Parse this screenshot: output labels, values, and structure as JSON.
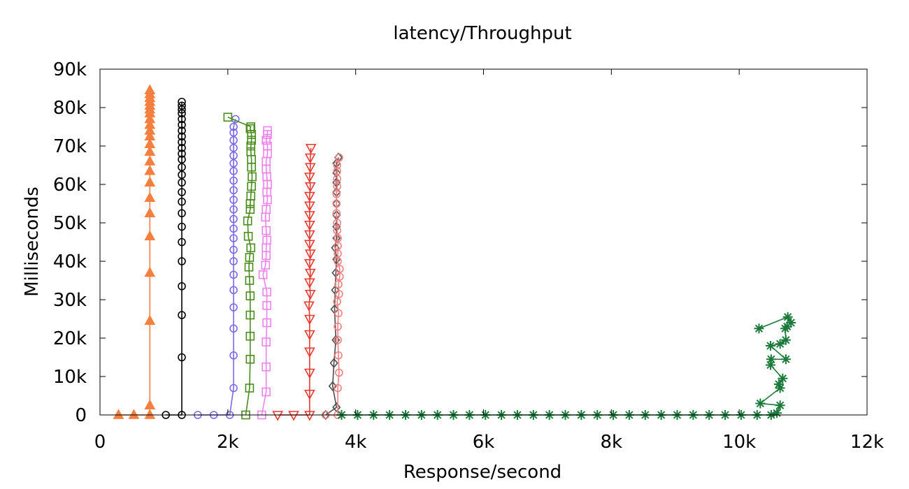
{
  "chart_data": {
    "type": "line",
    "title": "latency/Throughput",
    "xlabel": "Response/second",
    "ylabel": "Milliseconds",
    "xlim": [
      0,
      12000
    ],
    "ylim": [
      0,
      90000
    ],
    "x_ticks": [
      0,
      2000,
      4000,
      6000,
      8000,
      10000,
      12000
    ],
    "x_tick_labels": [
      "0",
      "2k",
      "4k",
      "6k",
      "8k",
      "10k",
      "12k"
    ],
    "y_ticks": [
      0,
      10000,
      20000,
      30000,
      40000,
      50000,
      60000,
      70000,
      80000,
      90000
    ],
    "y_tick_labels": [
      "0",
      "10k",
      "20k",
      "30k",
      "40k",
      "50k",
      "60k",
      "70k",
      "80k",
      "90k"
    ],
    "grid": false,
    "legend": "none",
    "series": [
      {
        "color": "#f47f3e",
        "marker": "triangle-up",
        "points": [
          [
            290,
            0
          ],
          [
            530,
            0
          ],
          [
            780,
            0
          ],
          [
            780,
            2500
          ],
          [
            780,
            24500
          ],
          [
            780,
            37000
          ],
          [
            780,
            46500
          ],
          [
            780,
            52500
          ],
          [
            780,
            56500
          ],
          [
            780,
            60500
          ],
          [
            780,
            63500
          ],
          [
            780,
            66000
          ],
          [
            780,
            68500
          ],
          [
            780,
            70500
          ],
          [
            780,
            72500
          ],
          [
            780,
            74000
          ],
          [
            780,
            75500
          ],
          [
            780,
            77000
          ],
          [
            780,
            78500
          ],
          [
            780,
            79500
          ],
          [
            780,
            80500
          ],
          [
            780,
            81500
          ],
          [
            780,
            82500
          ],
          [
            780,
            83500
          ],
          [
            780,
            84500
          ]
        ]
      },
      {
        "color": "#000000",
        "marker": "circle",
        "points": [
          [
            1030,
            0
          ],
          [
            1280,
            0
          ],
          [
            1280,
            15000
          ],
          [
            1280,
            26000
          ],
          [
            1280,
            33500
          ],
          [
            1280,
            40000
          ],
          [
            1280,
            45000
          ],
          [
            1280,
            49000
          ],
          [
            1280,
            52500
          ],
          [
            1280,
            55500
          ],
          [
            1280,
            58000
          ],
          [
            1280,
            60500
          ],
          [
            1280,
            62500
          ],
          [
            1280,
            64500
          ],
          [
            1280,
            66500
          ],
          [
            1280,
            68000
          ],
          [
            1280,
            69500
          ],
          [
            1280,
            71000
          ],
          [
            1280,
            72500
          ],
          [
            1280,
            74000
          ],
          [
            1280,
            75500
          ],
          [
            1280,
            77000
          ],
          [
            1280,
            78500
          ],
          [
            1280,
            79500
          ],
          [
            1280,
            80500
          ],
          [
            1280,
            81500
          ]
        ]
      },
      {
        "color": "#7b68ee",
        "marker": "circle",
        "points": [
          [
            1530,
            0
          ],
          [
            1780,
            0
          ],
          [
            2030,
            0
          ],
          [
            2090,
            7000
          ],
          [
            2090,
            15500
          ],
          [
            2090,
            22500
          ],
          [
            2090,
            28000
          ],
          [
            2090,
            32500
          ],
          [
            2090,
            36500
          ],
          [
            2090,
            40000
          ],
          [
            2090,
            43000
          ],
          [
            2090,
            46000
          ],
          [
            2090,
            48500
          ],
          [
            2090,
            51000
          ],
          [
            2090,
            53500
          ],
          [
            2090,
            56000
          ],
          [
            2090,
            58500
          ],
          [
            2090,
            61000
          ],
          [
            2090,
            63500
          ],
          [
            2090,
            65500
          ],
          [
            2090,
            67500
          ],
          [
            2090,
            69500
          ],
          [
            2090,
            71500
          ],
          [
            2090,
            73500
          ],
          [
            2090,
            75000
          ],
          [
            2120,
            77000
          ]
        ]
      },
      {
        "color": "#4a8c1c",
        "marker": "square",
        "points": [
          [
            2280,
            0
          ],
          [
            2340,
            7000
          ],
          [
            2350,
            14500
          ],
          [
            2350,
            20500
          ],
          [
            2350,
            26000
          ],
          [
            2350,
            31000
          ],
          [
            2340,
            35000
          ],
          [
            2330,
            38500
          ],
          [
            2340,
            41000
          ],
          [
            2360,
            43500
          ],
          [
            2320,
            46500
          ],
          [
            2310,
            50500
          ],
          [
            2350,
            53500
          ],
          [
            2350,
            55000
          ],
          [
            2360,
            57000
          ],
          [
            2370,
            59500
          ],
          [
            2380,
            62000
          ],
          [
            2370,
            64500
          ],
          [
            2370,
            66500
          ],
          [
            2360,
            68500
          ],
          [
            2360,
            70000
          ],
          [
            2370,
            71500
          ],
          [
            2370,
            73000
          ],
          [
            2350,
            74500
          ],
          [
            2360,
            75000
          ],
          [
            2000,
            77500
          ]
        ]
      },
      {
        "color": "#ee82ee",
        "marker": "square",
        "points": [
          [
            2530,
            0
          ],
          [
            2600,
            6000
          ],
          [
            2600,
            12500
          ],
          [
            2600,
            19000
          ],
          [
            2610,
            24000
          ],
          [
            2610,
            28500
          ],
          [
            2610,
            32000
          ],
          [
            2550,
            36500
          ],
          [
            2590,
            39000
          ],
          [
            2600,
            41500
          ],
          [
            2600,
            43500
          ],
          [
            2610,
            45500
          ],
          [
            2600,
            48000
          ],
          [
            2590,
            51500
          ],
          [
            2600,
            53500
          ],
          [
            2620,
            56000
          ],
          [
            2610,
            58000
          ],
          [
            2620,
            60000
          ],
          [
            2610,
            62000
          ],
          [
            2600,
            64000
          ],
          [
            2600,
            66000
          ],
          [
            2620,
            68000
          ],
          [
            2620,
            70000
          ],
          [
            2600,
            71500
          ],
          [
            2620,
            73000
          ],
          [
            2620,
            74000
          ]
        ]
      },
      {
        "color": "#e8382f",
        "marker": "triangle-down",
        "points": [
          [
            2780,
            0
          ],
          [
            3030,
            0
          ],
          [
            3280,
            0
          ],
          [
            3280,
            5500
          ],
          [
            3280,
            11000
          ],
          [
            3280,
            16500
          ],
          [
            3280,
            21000
          ],
          [
            3280,
            25000
          ],
          [
            3270,
            28500
          ],
          [
            3290,
            31500
          ],
          [
            3280,
            34500
          ],
          [
            3290,
            37000
          ],
          [
            3280,
            39500
          ],
          [
            3290,
            42000
          ],
          [
            3280,
            44500
          ],
          [
            3280,
            47000
          ],
          [
            3280,
            49500
          ],
          [
            3280,
            52000
          ],
          [
            3280,
            54500
          ],
          [
            3280,
            57000
          ],
          [
            3290,
            59500
          ],
          [
            3280,
            62000
          ],
          [
            3290,
            64500
          ],
          [
            3290,
            67000
          ],
          [
            3300,
            69500
          ]
        ]
      },
      {
        "color": "#4d4d4d",
        "marker": "diamond",
        "points": [
          [
            3530,
            0
          ],
          [
            3700,
            2000
          ],
          [
            3640,
            7500
          ],
          [
            3660,
            13500
          ],
          [
            3690,
            19500
          ],
          [
            3670,
            27500
          ],
          [
            3680,
            32500
          ],
          [
            3690,
            37000
          ],
          [
            3700,
            40500
          ],
          [
            3680,
            43500
          ],
          [
            3700,
            46000
          ],
          [
            3700,
            49000
          ],
          [
            3700,
            52000
          ],
          [
            3700,
            55000
          ],
          [
            3700,
            58000
          ],
          [
            3700,
            60500
          ],
          [
            3700,
            63000
          ],
          [
            3700,
            65500
          ],
          [
            3730,
            67000
          ]
        ]
      },
      {
        "color": "#f08080",
        "marker": "circle",
        "points": [
          [
            3530,
            0
          ],
          [
            3720,
            0
          ],
          [
            3720,
            7000
          ],
          [
            3740,
            11000
          ],
          [
            3730,
            15500
          ],
          [
            3720,
            19500
          ],
          [
            3720,
            23000
          ],
          [
            3730,
            26500
          ],
          [
            3710,
            29500
          ],
          [
            3740,
            31500
          ],
          [
            3730,
            34000
          ],
          [
            3750,
            36000
          ],
          [
            3750,
            38000
          ],
          [
            3720,
            40000
          ],
          [
            3720,
            42000
          ],
          [
            3720,
            44000
          ],
          [
            3720,
            46000
          ],
          [
            3710,
            48000
          ],
          [
            3710,
            50000
          ],
          [
            3700,
            52500
          ],
          [
            3700,
            55000
          ],
          [
            3700,
            57500
          ],
          [
            3710,
            59500
          ],
          [
            3710,
            61500
          ],
          [
            3710,
            63500
          ],
          [
            3710,
            65000
          ],
          [
            3740,
            67000
          ]
        ]
      },
      {
        "color": "#1b7a3a",
        "marker": "star",
        "points": [
          [
            3780,
            0
          ],
          [
            4030,
            0
          ],
          [
            4280,
            0
          ],
          [
            4530,
            0
          ],
          [
            4780,
            0
          ],
          [
            5030,
            0
          ],
          [
            5280,
            0
          ],
          [
            5530,
            0
          ],
          [
            5780,
            0
          ],
          [
            6030,
            0
          ],
          [
            6280,
            0
          ],
          [
            6530,
            0
          ],
          [
            6780,
            0
          ],
          [
            7030,
            0
          ],
          [
            7280,
            0
          ],
          [
            7530,
            0
          ],
          [
            7780,
            0
          ],
          [
            8030,
            0
          ],
          [
            8280,
            0
          ],
          [
            8530,
            0
          ],
          [
            8780,
            0
          ],
          [
            9030,
            0
          ],
          [
            9280,
            0
          ],
          [
            9530,
            0
          ],
          [
            9780,
            0
          ],
          [
            10030,
            0
          ],
          [
            10280,
            0
          ],
          [
            10500,
            0
          ],
          [
            10590,
            500
          ],
          [
            10640,
            2500
          ],
          [
            10330,
            3000
          ],
          [
            10640,
            7000
          ],
          [
            10620,
            8000
          ],
          [
            10680,
            9500
          ],
          [
            10490,
            13000
          ],
          [
            10500,
            14500
          ],
          [
            10730,
            14500
          ],
          [
            10490,
            18000
          ],
          [
            10640,
            18500
          ],
          [
            10730,
            19500
          ],
          [
            10720,
            22500
          ],
          [
            10750,
            23000
          ],
          [
            10810,
            24000
          ],
          [
            10760,
            25500
          ],
          [
            10310,
            22500
          ]
        ]
      }
    ]
  }
}
